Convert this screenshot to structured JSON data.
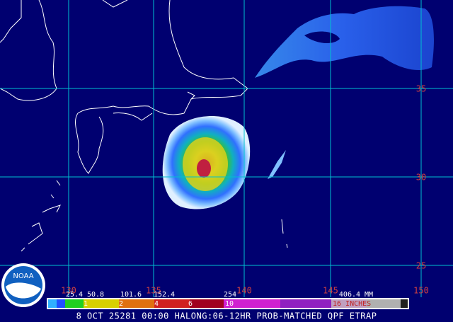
{
  "map": {
    "latitude_labels": [
      "35",
      "30",
      "25"
    ],
    "longitude_labels": [
      "130",
      "135",
      "140",
      "145",
      "150"
    ],
    "legend": {
      "mm_labels": [
        "25.4",
        "50.8",
        "101.6",
        "152.4",
        "254",
        "406.4 MM"
      ],
      "inch_labels": [
        "1",
        "2",
        "4",
        "6",
        "10",
        "16 INCHES"
      ]
    },
    "logo": "NOAA",
    "caption": "8 OCT 25281 00:00 HALONG:06-12HR PROB-MATCHED QPF ETRAP"
  }
}
